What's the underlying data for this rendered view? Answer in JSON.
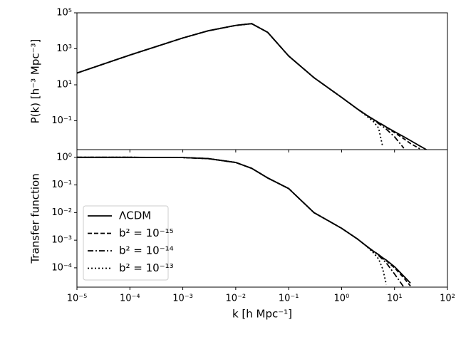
{
  "chart_data": [
    {
      "type": "line",
      "ylabel": "P(k) [h⁻³ Mpc⁻³]",
      "xscale": "log",
      "yscale": "log",
      "xlim": [
        1e-05,
        100
      ],
      "ylim": [
        0.0025,
        100000
      ],
      "yticks": [
        {
          "value": 0.1,
          "label": "10⁻¹"
        },
        {
          "value": 10,
          "label": "10¹"
        },
        {
          "value": 1000,
          "label": "10³"
        },
        {
          "value": 100000,
          "label": "10⁵"
        }
      ],
      "x": [
        1e-05,
        0.0001,
        0.001,
        0.003,
        0.01,
        0.02,
        0.04,
        0.1,
        0.3,
        1,
        2,
        3,
        4,
        5,
        6,
        7,
        10,
        15,
        20,
        30,
        40
      ],
      "series": [
        {
          "color": "#000000",
          "dash": "solid",
          "values": [
            45,
            450,
            4000,
            10000,
            20000,
            25000,
            8300,
            400,
            25,
            2,
            0.45,
            0.2,
            0.12,
            0.08,
            0.06,
            0.045,
            0.025,
            0.013,
            0.008,
            0.004,
            0.0025
          ]
        },
        {
          "color": "#000000",
          "dash": "dashed",
          "values": [
            45,
            450,
            4000,
            10000,
            20000,
            25000,
            8300,
            400,
            25,
            2,
            0.45,
            0.2,
            0.12,
            0.08,
            0.058,
            0.043,
            0.022,
            0.01,
            0.0055,
            0.0028,
            null
          ]
        },
        {
          "color": "#000000",
          "dash": "dashdot",
          "values": [
            45,
            450,
            4000,
            10000,
            20000,
            25000,
            8300,
            400,
            25,
            2,
            0.45,
            0.2,
            0.11,
            0.07,
            0.048,
            0.034,
            0.013,
            0.003,
            null,
            null,
            null
          ]
        },
        {
          "color": "#000000",
          "dash": "dotted",
          "values": [
            45,
            450,
            4000,
            10000,
            20000,
            25000,
            8300,
            400,
            25,
            2,
            0.44,
            0.18,
            0.09,
            0.04,
            0.0035,
            null,
            null,
            null,
            null,
            null,
            null
          ]
        }
      ]
    },
    {
      "type": "line",
      "ylabel": "Transfer function",
      "xlabel": "k [h Mpc⁻¹]",
      "xscale": "log",
      "yscale": "log",
      "legend": "lower left",
      "xlim": [
        1e-05,
        100
      ],
      "ylim": [
        2e-05,
        1.9
      ],
      "xticks": [
        {
          "value": 1e-05,
          "label": "10⁻⁵"
        },
        {
          "value": 0.0001,
          "label": "10⁻⁴"
        },
        {
          "value": 0.001,
          "label": "10⁻³"
        },
        {
          "value": 0.01,
          "label": "10⁻²"
        },
        {
          "value": 0.1,
          "label": "10⁻¹"
        },
        {
          "value": 1,
          "label": "10⁰"
        },
        {
          "value": 10,
          "label": "10¹"
        },
        {
          "value": 100,
          "label": "10²"
        }
      ],
      "yticks": [
        {
          "value": 0.0001,
          "label": "10⁻⁴"
        },
        {
          "value": 0.001,
          "label": "10⁻³"
        },
        {
          "value": 0.01,
          "label": "10⁻²"
        },
        {
          "value": 0.1,
          "label": "10⁻¹"
        },
        {
          "value": 1,
          "label": "10⁰"
        }
      ],
      "x": [
        1e-05,
        0.0001,
        0.001,
        0.003,
        0.01,
        0.02,
        0.04,
        0.1,
        0.3,
        1,
        2,
        3,
        4,
        5,
        6,
        7,
        10,
        15,
        20
      ],
      "series": [
        {
          "name": "ΛCDM",
          "color": "#000000",
          "dash": "solid",
          "values": [
            1,
            1,
            0.98,
            0.9,
            0.65,
            0.4,
            0.18,
            0.074,
            0.01,
            0.0027,
            0.0011,
            0.0006,
            0.0004,
            0.0003,
            0.00023,
            0.00019,
            0.00011,
            5e-05,
            2.8e-05
          ]
        },
        {
          "name": "b² = 10⁻¹⁵",
          "color": "#000000",
          "dash": "dashed",
          "values": [
            1,
            1,
            0.98,
            0.9,
            0.65,
            0.4,
            0.18,
            0.074,
            0.01,
            0.0027,
            0.0011,
            0.0006,
            0.0004,
            0.0003,
            0.00022,
            0.00018,
            0.0001,
            4.3e-05,
            2.2e-05
          ]
        },
        {
          "name": "b² = 10⁻¹⁴",
          "color": "#000000",
          "dash": "dashdot",
          "values": [
            1,
            1,
            0.98,
            0.9,
            0.65,
            0.4,
            0.18,
            0.074,
            0.01,
            0.0027,
            0.0011,
            0.0006,
            0.00039,
            0.00028,
            0.0002,
            0.00015,
            6e-05,
            2e-05,
            null
          ]
        },
        {
          "name": "b² = 10⁻¹³",
          "color": "#000000",
          "dash": "dotted",
          "values": [
            1,
            1,
            0.98,
            0.9,
            0.65,
            0.4,
            0.18,
            0.074,
            0.01,
            0.0027,
            0.0011,
            0.00059,
            0.00035,
            0.00021,
            9e-05,
            2.5e-05,
            null,
            null,
            null
          ]
        }
      ]
    }
  ]
}
